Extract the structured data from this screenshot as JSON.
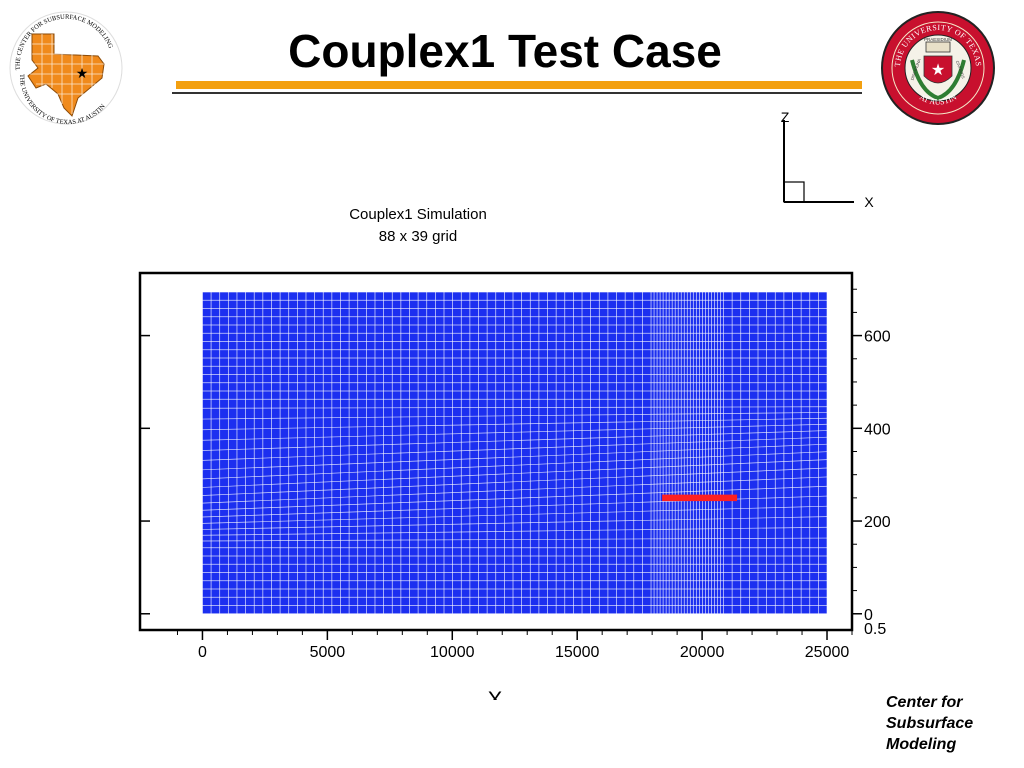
{
  "slide": {
    "title": "Couplex1 Test Case",
    "footer_lines": [
      "Center for",
      "Subsurface",
      "Modeling"
    ],
    "colors": {
      "accent_orange": "#f3a010",
      "texas_orange": "#f08a1c",
      "ut_red": "#c8102e",
      "grid_blue": "#1c2ff0",
      "highlight_red": "#ff2020"
    }
  },
  "logos": {
    "left_seal_text_top": "THE CENTER FOR SUBSURFACE MODELING",
    "left_seal_text_bottom": "THE UNIVERSITY OF TEXAS AT AUSTIN",
    "right_seal_text_top": "THE UNIVERSITY OF TEXAS",
    "right_seal_text_bottom": "AT AUSTIN",
    "right_seal_words": [
      "PRAESIDIUM",
      "DISCIPLINA",
      "CIVITATIS"
    ]
  },
  "orientation_icon": {
    "z_label": "Z",
    "x_label": "X"
  },
  "chart_data": {
    "type": "heatmap",
    "title": "Couplex1 Simulation",
    "subtitle": "88 x 39 grid",
    "xlabel": "X",
    "ylabel": "",
    "xlim": [
      -2500,
      26000
    ],
    "ylim": [
      -35,
      735
    ],
    "x_ticks": [
      0,
      5000,
      10000,
      15000,
      20000,
      25000
    ],
    "y_ticks": [
      0,
      200,
      400,
      600
    ],
    "y_tick_labels": [
      "0",
      "200",
      "400",
      "600"
    ],
    "extra_tick_label": "0.5",
    "grid_cells": {
      "nx": 88,
      "nz": 39
    },
    "domain": {
      "x": [
        0,
        25000
      ],
      "z": [
        0,
        694
      ]
    },
    "highlight_region": {
      "x": [
        18400,
        21400
      ],
      "z": [
        243,
        257
      ]
    },
    "grid": true
  }
}
